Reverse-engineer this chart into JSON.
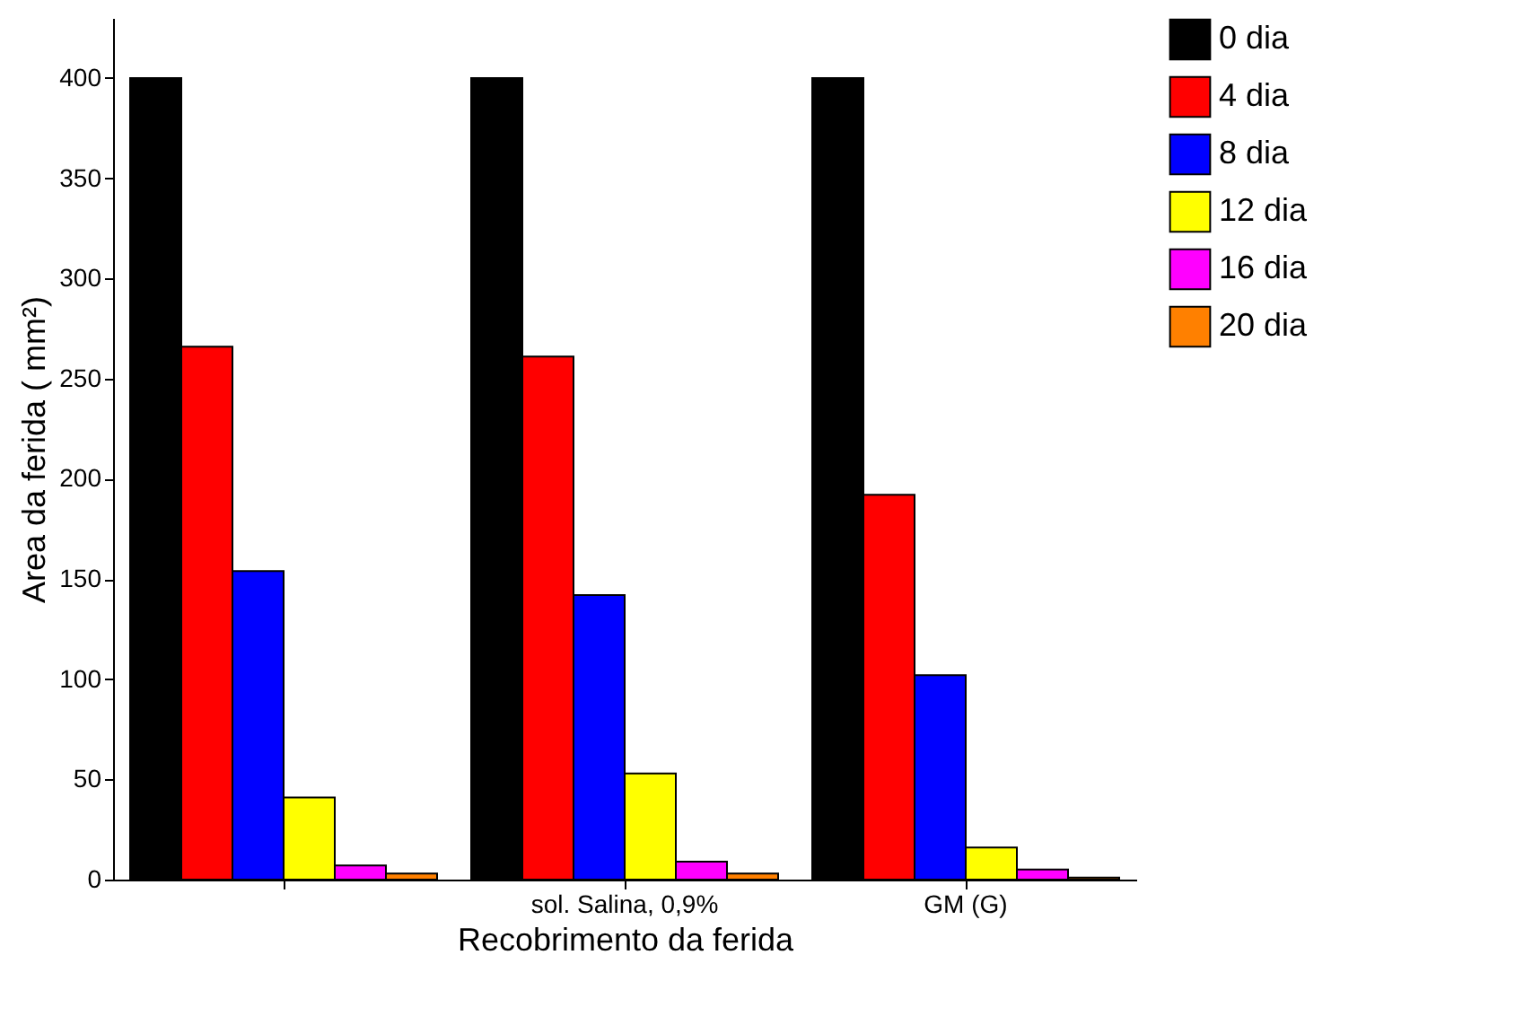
{
  "chart_data": {
    "type": "bar",
    "xlabel": "Recobrimento da ferida",
    "ylabel": "Area da ferida ( mm²)",
    "categories": [
      null,
      "sol. Salina, 0,9%",
      "GM (G)"
    ],
    "series": [
      {
        "name": "0 dia",
        "color": "#000000",
        "values": [
          400,
          400,
          400
        ]
      },
      {
        "name": "4 dia",
        "color": "#ff0000",
        "values": [
          266,
          261,
          192
        ]
      },
      {
        "name": "8 dia",
        "color": "#0000ff",
        "values": [
          154,
          142,
          102
        ]
      },
      {
        "name": "12 dia",
        "color": "#ffff00",
        "values": [
          41,
          53,
          16
        ]
      },
      {
        "name": "16 dia",
        "color": "#ff00ff",
        "values": [
          7,
          9,
          5
        ]
      },
      {
        "name": "20 dia",
        "color": "#ff8000",
        "values": [
          3,
          3,
          1
        ]
      }
    ],
    "ylim": [
      0,
      430
    ],
    "yticks": [
      0,
      50,
      100,
      150,
      200,
      250,
      300,
      350,
      400
    ],
    "grid": false,
    "legend": "right"
  }
}
